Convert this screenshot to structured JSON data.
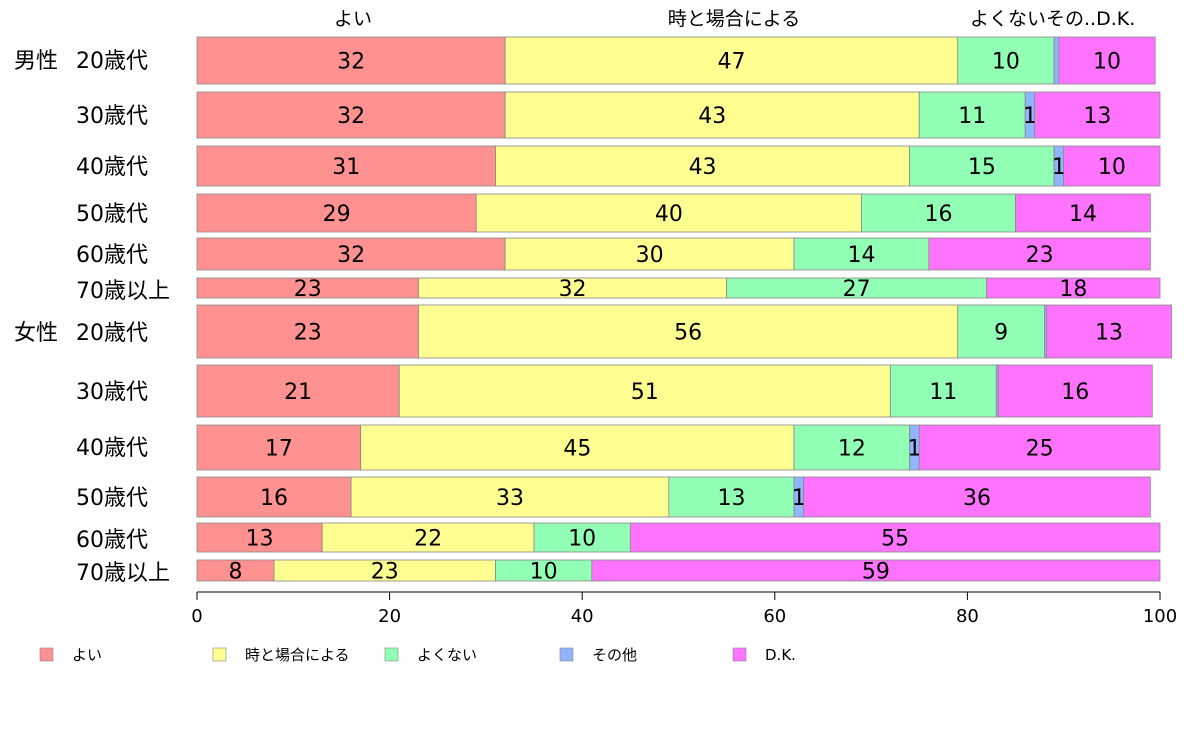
{
  "chart_data": {
    "type": "bar",
    "orientation": "horizontal",
    "stacked": true,
    "xlim": [
      0,
      100
    ],
    "xticks": [
      0,
      20,
      40,
      60,
      80,
      100
    ],
    "grid": false,
    "legend_position": "bottom",
    "top_labels": [
      "よい",
      "時と場合による",
      "よくない",
      "その",
      "D.K."
    ],
    "series": [
      {
        "name": "よい",
        "color": "#ff9191"
      },
      {
        "name": "時と場合による",
        "color": "#ffff91"
      },
      {
        "name": "よくない",
        "color": "#91ffb4"
      },
      {
        "name": "その他",
        "color": "#91b4ff"
      },
      {
        "name": "D.K.",
        "color": "#ff73ff"
      }
    ],
    "rows": [
      {
        "label": "男性 20歳代",
        "values": [
          32,
          47,
          10,
          0.5,
          10
        ],
        "labels": [
          "32",
          "47",
          "10",
          "",
          "10"
        ]
      },
      {
        "label": "30歳代",
        "values": [
          32,
          43,
          11,
          1,
          13
        ],
        "labels": [
          "32",
          "43",
          "11",
          "1",
          "13"
        ]
      },
      {
        "label": "40歳代",
        "values": [
          31,
          43,
          15,
          1,
          10
        ],
        "labels": [
          "31",
          "43",
          "15",
          "1",
          "10"
        ]
      },
      {
        "label": "50歳代",
        "values": [
          29,
          40,
          16,
          0,
          14
        ],
        "labels": [
          "29",
          "40",
          "16",
          "",
          "14"
        ]
      },
      {
        "label": "60歳代",
        "values": [
          32,
          30,
          14,
          0,
          23
        ],
        "labels": [
          "32",
          "30",
          "14",
          "",
          "23"
        ]
      },
      {
        "label": "70歳以上",
        "values": [
          23,
          32,
          27,
          0,
          18
        ],
        "labels": [
          "23",
          "32",
          "27",
          "",
          "18"
        ]
      },
      {
        "label": "女性 20歳代",
        "values": [
          23,
          56,
          9,
          0.2,
          13
        ],
        "labels": [
          "23",
          "56",
          "9",
          "",
          "13"
        ]
      },
      {
        "label": "30歳代",
        "values": [
          21,
          51,
          11,
          0.2,
          16
        ],
        "labels": [
          "21",
          "51",
          "11",
          "",
          "16"
        ]
      },
      {
        "label": "40歳代",
        "values": [
          17,
          45,
          12,
          1,
          25
        ],
        "labels": [
          "17",
          "45",
          "12",
          "1",
          "25"
        ]
      },
      {
        "label": "50歳代",
        "values": [
          16,
          33,
          13,
          1,
          36
        ],
        "labels": [
          "16",
          "33",
          "13",
          "1",
          "36"
        ]
      },
      {
        "label": "60歳代",
        "values": [
          13,
          22,
          10,
          0,
          55
        ],
        "labels": [
          "13",
          "22",
          "10",
          "",
          "55"
        ]
      },
      {
        "label": "70歳以上",
        "values": [
          8,
          23,
          10,
          0,
          59
        ],
        "labels": [
          "8",
          "23",
          "10",
          "",
          "59"
        ]
      }
    ]
  }
}
